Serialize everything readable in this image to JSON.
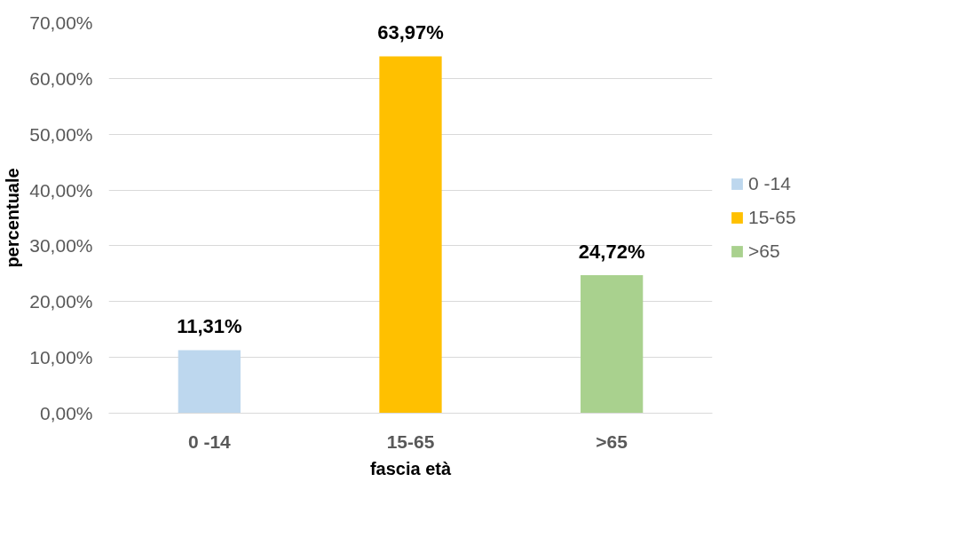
{
  "chart_data": {
    "type": "bar",
    "xlabel": "fascia età",
    "ylabel": "percentuale",
    "categories": [
      "0 -14",
      "15-65",
      ">65"
    ],
    "series": [
      {
        "name": "0 -14",
        "color": "#bdd7ee",
        "values": [
          11.31,
          null,
          null
        ],
        "value_labels": [
          "11,31%",
          null,
          null
        ]
      },
      {
        "name": "15-65",
        "color": "#ffc000",
        "values": [
          null,
          63.97,
          null
        ],
        "value_labels": [
          null,
          "63,97%",
          null
        ]
      },
      {
        "name": ">65",
        "color": "#a9d18e",
        "values": [
          null,
          null,
          24.72
        ],
        "value_labels": [
          null,
          null,
          "24,72%"
        ]
      }
    ],
    "ylim": [
      0,
      70
    ],
    "yticks": [
      {
        "value": 0,
        "label": "0,00%"
      },
      {
        "value": 10,
        "label": "10,00%"
      },
      {
        "value": 20,
        "label": "20,00%"
      },
      {
        "value": 30,
        "label": "30,00%"
      },
      {
        "value": 40,
        "label": "40,00%"
      },
      {
        "value": 50,
        "label": "50,00%"
      },
      {
        "value": 60,
        "label": "60,00%"
      },
      {
        "value": 70,
        "label": "70,00%"
      }
    ],
    "grid": "y",
    "legend": "right"
  }
}
